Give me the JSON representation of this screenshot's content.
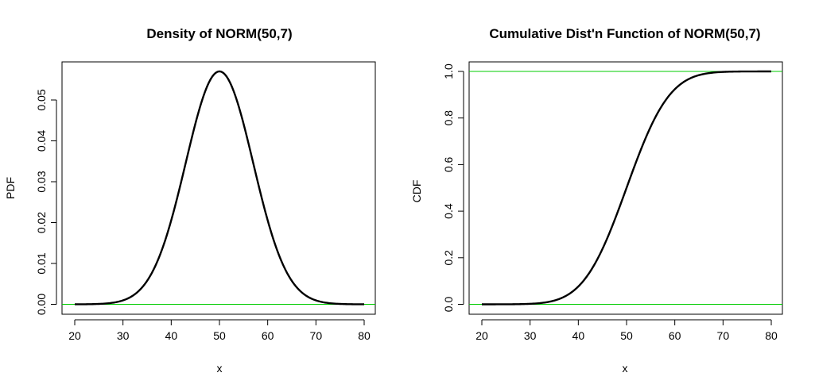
{
  "chart_data": [
    {
      "type": "line",
      "title": "Density of NORM(50,7)",
      "xlabel": "x",
      "ylabel": "PDF",
      "xlim": [
        20,
        80
      ],
      "ylim": [
        0,
        0.057
      ],
      "x_ticks": [
        "20",
        "30",
        "40",
        "50",
        "60",
        "70",
        "80"
      ],
      "y_ticks": [
        "0.00",
        "0.01",
        "0.02",
        "0.03",
        "0.04",
        "0.05"
      ],
      "distribution": {
        "name": "normal",
        "mean": 50,
        "sd": 7,
        "function": "pdf"
      },
      "series": [
        {
          "name": "PDF",
          "color": "#000000",
          "x": [
            20,
            22,
            24,
            26,
            28,
            30,
            32,
            34,
            36,
            38,
            40,
            42,
            44,
            46,
            48,
            50,
            52,
            54,
            56,
            58,
            60,
            62,
            64,
            66,
            68,
            70,
            72,
            74,
            76,
            78,
            80
          ],
          "y": [
            1e-05,
            2e-05,
            7e-05,
            0.00016,
            0.0004,
            0.00095,
            0.00207,
            0.00417,
            0.00775,
            0.01324,
            0.02079,
            0.03003,
            0.03982,
            0.04852,
            0.05431,
            0.05699,
            0.05431,
            0.04852,
            0.03982,
            0.03003,
            0.02079,
            0.01324,
            0.00775,
            0.00417,
            0.00207,
            0.00095,
            0.0004,
            0.00016,
            7e-05,
            2e-05,
            1e-05
          ]
        }
      ],
      "reference_line": {
        "y": 0,
        "color": "#00cc00"
      }
    },
    {
      "type": "line",
      "title": "Cumulative Dist'n Function of NORM(50,7)",
      "xlabel": "x",
      "ylabel": "CDF",
      "xlim": [
        20,
        80
      ],
      "ylim": [
        0,
        1
      ],
      "x_ticks": [
        "20",
        "30",
        "40",
        "50",
        "60",
        "70",
        "80"
      ],
      "y_ticks": [
        "0.0",
        "0.2",
        "0.4",
        "0.6",
        "0.8",
        "1.0"
      ],
      "distribution": {
        "name": "normal",
        "mean": 50,
        "sd": 7,
        "function": "cdf"
      },
      "series": [
        {
          "name": "CDF",
          "color": "#000000",
          "x": [
            20,
            22,
            24,
            26,
            28,
            30,
            32,
            34,
            36,
            38,
            40,
            42,
            44,
            46,
            48,
            50,
            52,
            54,
            56,
            58,
            60,
            62,
            64,
            66,
            68,
            70,
            72,
            74,
            76,
            78,
            80
          ],
          "y": [
            1e-05,
            3e-05,
            0.0001,
            0.0003,
            0.00085,
            0.00221,
            0.0052,
            0.0112,
            0.02275,
            0.04338,
            0.07656,
            0.1274,
            0.1967,
            0.28434,
            0.38755,
            0.5,
            0.61245,
            0.71566,
            0.8033,
            0.8726,
            0.92344,
            0.95662,
            0.97725,
            0.9888,
            0.9948,
            0.99779,
            0.99915,
            0.9997,
            0.9999,
            0.99997,
            0.99999
          ]
        }
      ],
      "reference_lines": [
        {
          "y": 0,
          "color": "#00cc00"
        },
        {
          "y": 1,
          "color": "#00cc00"
        }
      ]
    }
  ]
}
